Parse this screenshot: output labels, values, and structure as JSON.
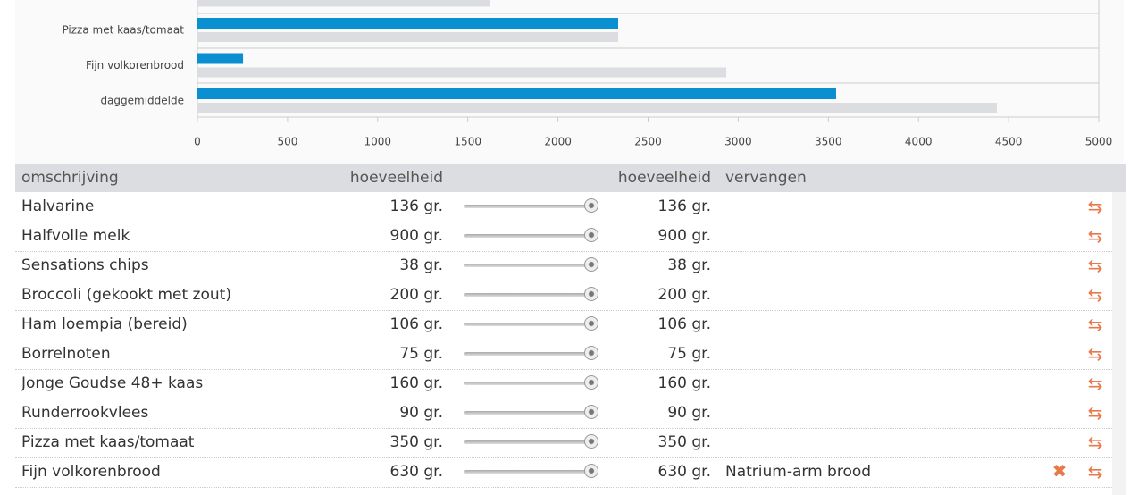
{
  "chart_data": {
    "type": "bar",
    "orientation": "horizontal",
    "categories": [
      null,
      "Pizza met kaas/tomaat",
      "Fijn volkorenbrood",
      "daggemiddelde"
    ],
    "series": [
      {
        "color": "#0a8fd0",
        "values": [
          null,
          2334,
          253,
          3543
        ]
      },
      {
        "color": "#dcdde1",
        "values": [
          1620,
          2334,
          2934,
          4435
        ]
      }
    ],
    "xlim": [
      0,
      5000
    ],
    "xticks": [
      0,
      500,
      1000,
      1500,
      2000,
      2500,
      3000,
      3500,
      4000,
      4500,
      5000
    ]
  },
  "table": {
    "header": [
      "omschrijving",
      "hoeveelheid",
      "hoeveelheid",
      "vervangen"
    ],
    "rows": [
      {
        "omschrijving": "Halvarine",
        "hoeveelheid": "136 gr.",
        "nieuw": "136 gr."
      },
      {
        "omschrijving": "Halfvolle melk",
        "hoeveelheid": "900 gr.",
        "nieuw": "900 gr."
      },
      {
        "omschrijving": "Sensations chips",
        "hoeveelheid": "38 gr.",
        "nieuw": "38 gr."
      },
      {
        "omschrijving": "Broccoli (gekookt met zout)",
        "hoeveelheid": "200 gr.",
        "nieuw": "200 gr."
      },
      {
        "omschrijving": "Ham loempia (bereid)",
        "hoeveelheid": "106 gr.",
        "nieuw": "106 gr."
      },
      {
        "omschrijving": "Borrelnoten",
        "hoeveelheid": "75 gr.",
        "nieuw": "75 gr."
      },
      {
        "omschrijving": "Jonge Goudse 48+ kaas",
        "hoeveelheid": "160 gr.",
        "nieuw": "160 gr."
      },
      {
        "omschrijving": "Runderrookvlees",
        "hoeveelheid": "90 gr.",
        "nieuw": "90 gr."
      },
      {
        "omschrijving": "Pizza met kaas/tomaat",
        "hoeveelheid": "350 gr.",
        "nieuw": "350 gr."
      },
      {
        "omschrijving": "Fijn volkorenbrood",
        "hoeveelheid": "630 gr.",
        "nieuw": "630 gr.",
        "vervangen": "Natrium-arm brood"
      }
    ]
  }
}
